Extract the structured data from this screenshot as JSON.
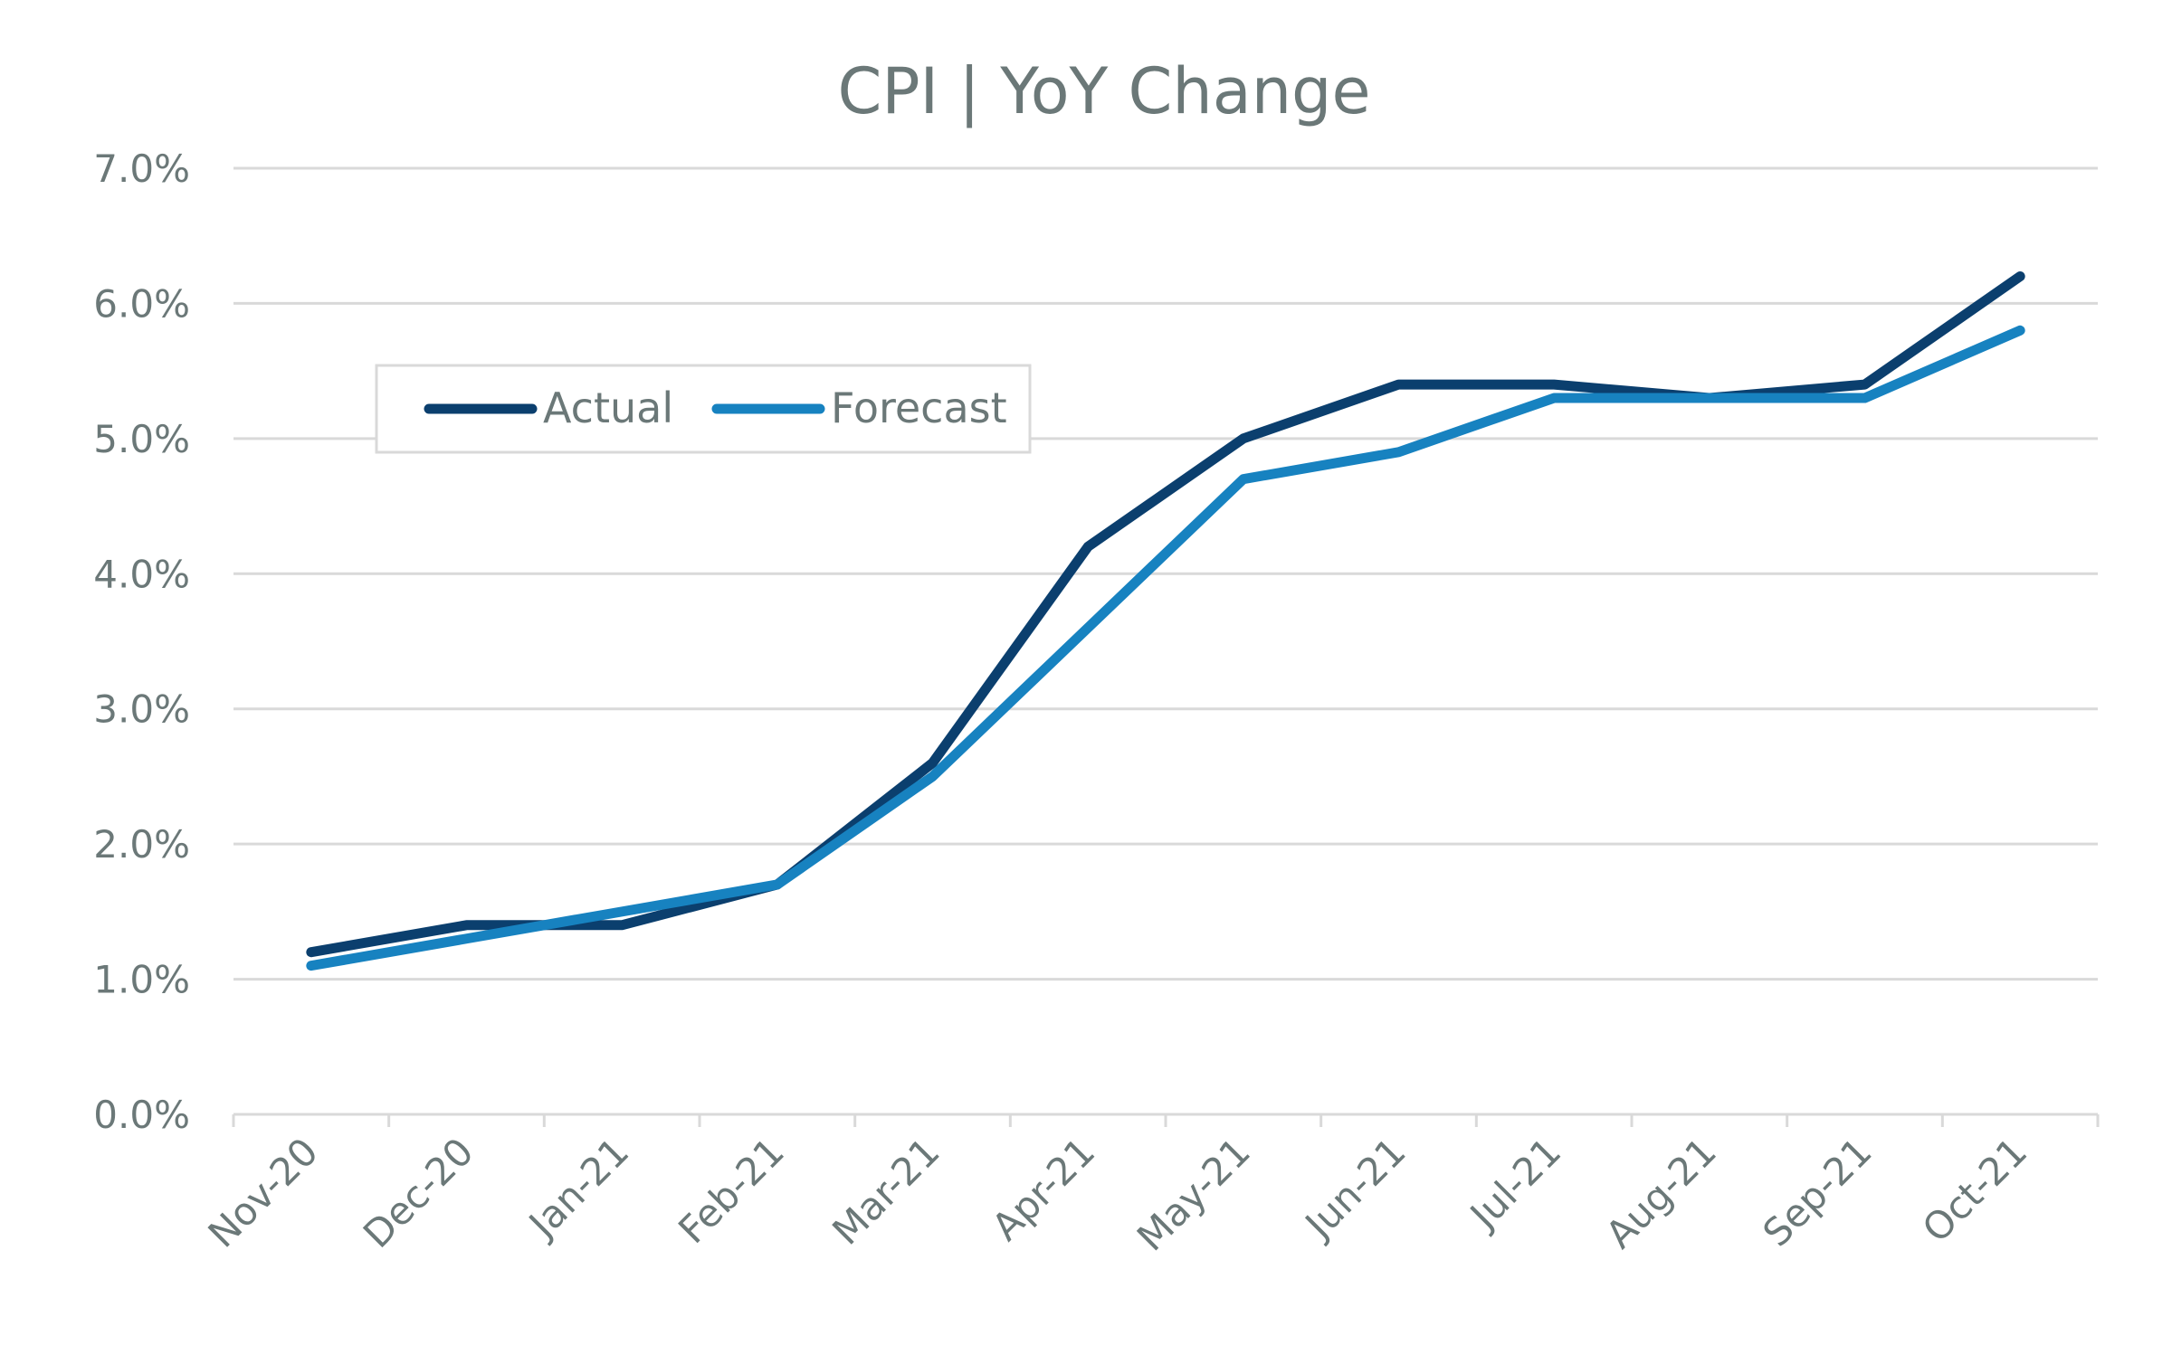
{
  "chart_data": {
    "type": "line",
    "title": "CPI | YoY Change",
    "xlabel": "",
    "ylabel": "",
    "categories": [
      "Nov-20",
      "Dec-20",
      "Jan-21",
      "Feb-21",
      "Mar-21",
      "Apr-21",
      "May-21",
      "Jun-21",
      "Jul-21",
      "Aug-21",
      "Sep-21",
      "Oct-21"
    ],
    "ylim": [
      0,
      7
    ],
    "yticks": [
      "0.0%",
      "1.0%",
      "2.0%",
      "3.0%",
      "4.0%",
      "5.0%",
      "6.0%",
      "7.0%"
    ],
    "grid": true,
    "legend_position": "top-left",
    "series": [
      {
        "name": "Actual",
        "color": "#0b3f6e",
        "values": [
          1.2,
          1.4,
          1.4,
          1.7,
          2.6,
          4.2,
          5.0,
          5.4,
          5.4,
          5.3,
          5.4,
          6.2
        ]
      },
      {
        "name": "Forecast",
        "color": "#1782c0",
        "values": [
          1.1,
          1.3,
          1.5,
          1.7,
          2.5,
          3.6,
          4.7,
          4.9,
          5.3,
          5.3,
          5.3,
          5.8
        ]
      }
    ]
  }
}
